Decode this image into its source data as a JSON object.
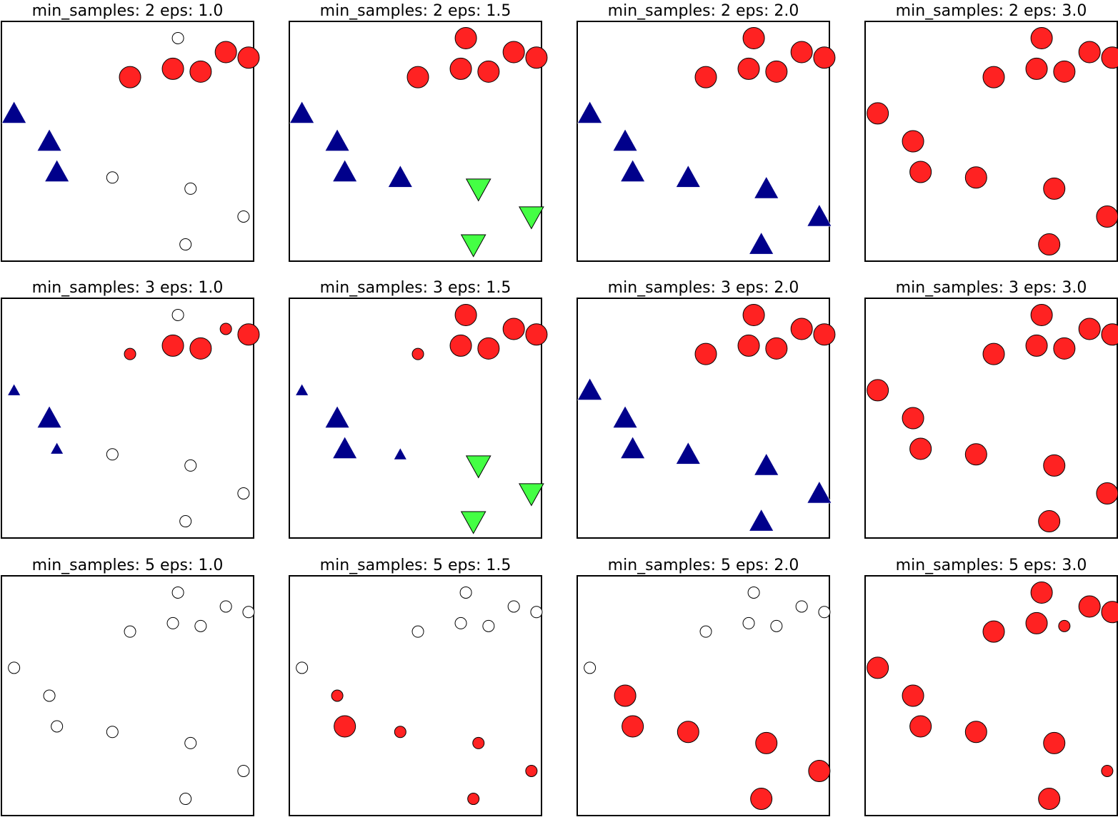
{
  "figure": {
    "description_free": true
  },
  "colors": {
    "noise": "#ffffff",
    "cluster0": "#ff2222",
    "cluster1": "#00008b",
    "cluster2": "#44ff44",
    "edge": "#000000"
  },
  "chart_data": {
    "type": "scatter",
    "points": [
      [
        7,
        9
      ],
      [
        9.8,
        8.3
      ],
      [
        7.9,
        7.8
      ],
      [
        5.1,
        7.6
      ],
      [
        6.8,
        7.9
      ],
      [
        8.9,
        8.5
      ],
      [
        0.5,
        6.3
      ],
      [
        1.9,
        5.3
      ],
      [
        2.2,
        4.2
      ],
      [
        4.4,
        4.0
      ],
      [
        7.5,
        3.6
      ],
      [
        9.6,
        2.6
      ],
      [
        7.3,
        1.6
      ]
    ],
    "xlim": [
      0,
      10
    ],
    "ylim": [
      1,
      9.6
    ],
    "panels": [
      {
        "title": "min_samples: 2 eps: 1.0",
        "labels": [
          -1,
          0,
          0,
          0,
          0,
          0,
          1,
          1,
          1,
          -1,
          -1,
          -1,
          -1
        ],
        "core": [
          0,
          1,
          1,
          1,
          1,
          1,
          1,
          1,
          1,
          0,
          0,
          0,
          0
        ]
      },
      {
        "title": "min_samples: 2 eps: 1.5",
        "labels": [
          0,
          0,
          0,
          0,
          0,
          0,
          1,
          1,
          1,
          1,
          2,
          2,
          2
        ],
        "core": [
          1,
          1,
          1,
          1,
          1,
          1,
          1,
          1,
          1,
          1,
          1,
          1,
          1
        ]
      },
      {
        "title": "min_samples: 2 eps: 2.0",
        "labels": [
          0,
          0,
          0,
          0,
          0,
          0,
          1,
          1,
          1,
          1,
          1,
          1,
          1
        ],
        "core": [
          1,
          1,
          1,
          1,
          1,
          1,
          1,
          1,
          1,
          1,
          1,
          1,
          1
        ]
      },
      {
        "title": "min_samples: 2 eps: 3.0",
        "labels": [
          0,
          0,
          0,
          0,
          0,
          0,
          0,
          0,
          0,
          0,
          0,
          0,
          0
        ],
        "core": [
          1,
          1,
          1,
          1,
          1,
          1,
          1,
          1,
          1,
          1,
          1,
          1,
          1
        ]
      },
      {
        "title": "min_samples: 3 eps: 1.0",
        "labels": [
          -1,
          0,
          0,
          0,
          0,
          0,
          1,
          1,
          1,
          -1,
          -1,
          -1,
          -1
        ],
        "core": [
          0,
          1,
          1,
          0,
          1,
          0,
          0,
          1,
          0,
          0,
          0,
          0,
          0
        ]
      },
      {
        "title": "min_samples: 3 eps: 1.5",
        "labels": [
          0,
          0,
          0,
          0,
          0,
          0,
          1,
          1,
          1,
          1,
          2,
          2,
          2
        ],
        "core": [
          1,
          1,
          1,
          0,
          1,
          1,
          0,
          1,
          1,
          0,
          1,
          1,
          1
        ]
      },
      {
        "title": "min_samples: 3 eps: 2.0",
        "labels": [
          0,
          0,
          0,
          0,
          0,
          0,
          1,
          1,
          1,
          1,
          1,
          1,
          1
        ],
        "core": [
          1,
          1,
          1,
          1,
          1,
          1,
          1,
          1,
          1,
          1,
          1,
          1,
          1
        ]
      },
      {
        "title": "min_samples: 3 eps: 3.0",
        "labels": [
          0,
          0,
          0,
          0,
          0,
          0,
          0,
          0,
          0,
          0,
          0,
          0,
          0
        ],
        "core": [
          1,
          1,
          1,
          1,
          1,
          1,
          1,
          1,
          1,
          1,
          1,
          1,
          1
        ]
      },
      {
        "title": "min_samples: 5 eps: 1.0",
        "labels": [
          -1,
          -1,
          -1,
          -1,
          -1,
          -1,
          -1,
          -1,
          -1,
          -1,
          -1,
          -1,
          -1
        ],
        "core": [
          0,
          0,
          0,
          0,
          0,
          0,
          0,
          0,
          0,
          0,
          0,
          0,
          0
        ]
      },
      {
        "title": "min_samples: 5 eps: 1.5",
        "labels": [
          -1,
          -1,
          -1,
          -1,
          -1,
          -1,
          -1,
          0,
          0,
          0,
          0,
          0,
          0
        ],
        "core": [
          0,
          0,
          0,
          0,
          0,
          0,
          0,
          0,
          1,
          0,
          0,
          0,
          0
        ]
      },
      {
        "title": "min_samples: 5 eps: 2.0",
        "labels": [
          -1,
          -1,
          -1,
          -1,
          -1,
          -1,
          -1,
          0,
          0,
          0,
          0,
          0,
          0
        ],
        "core": [
          0,
          0,
          0,
          0,
          0,
          0,
          0,
          1,
          1,
          1,
          1,
          1,
          1
        ]
      },
      {
        "title": "min_samples: 5 eps: 3.0",
        "labels": [
          0,
          0,
          0,
          0,
          0,
          0,
          0,
          0,
          0,
          0,
          0,
          0,
          0
        ],
        "core": [
          1,
          1,
          0,
          1,
          1,
          1,
          1,
          1,
          1,
          1,
          1,
          0,
          1
        ]
      }
    ]
  }
}
